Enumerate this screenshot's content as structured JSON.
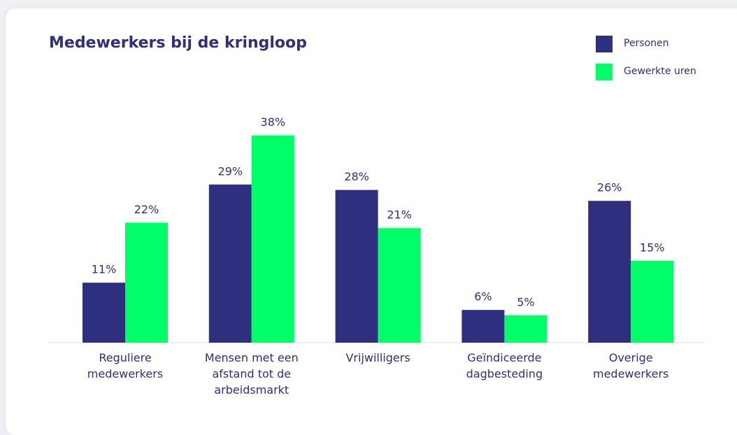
{
  "chart_data": {
    "type": "bar",
    "title": "Medewerkers bij de kringloop",
    "categories": [
      "Reguliere medewerkers",
      "Mensen met een afstand tot de arbeidsmarkt",
      "Vrijwilligers",
      "Geïndiceerde dagbesteding",
      "Overige medewerkers"
    ],
    "series": [
      {
        "name": "Personen",
        "color": "#2e2f7f",
        "values": [
          11,
          29,
          28,
          6,
          26
        ],
        "value_labels": [
          "11%",
          "29%",
          "28%",
          "6%",
          "26%"
        ]
      },
      {
        "name": "Gewerkte uren",
        "color": "#00ff66",
        "values": [
          22,
          38,
          21,
          5,
          15
        ],
        "value_labels": [
          "22%",
          "38%",
          "21%",
          "5%",
          "15%"
        ]
      }
    ],
    "legend": "top-right"
  }
}
